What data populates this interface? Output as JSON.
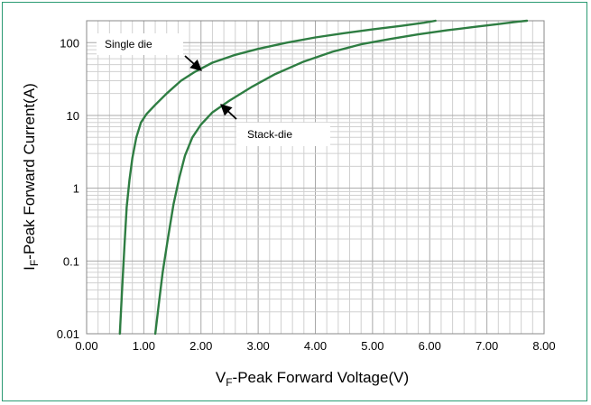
{
  "chart_data": {
    "type": "line",
    "xlabel": {
      "main": "V",
      "sub": "F",
      "rest": "-Peak Forward Voltage(V)"
    },
    "ylabel": {
      "main": "I",
      "sub": "F",
      "rest": "-Peak Forward Current(A)"
    },
    "xlim": [
      0,
      8
    ],
    "ylim": [
      0.01,
      200
    ],
    "y_scale": "log",
    "grid": true,
    "x_ticks": [
      "0.00",
      "1.00",
      "2.00",
      "3.00",
      "4.00",
      "5.00",
      "6.00",
      "7.00",
      "8.00"
    ],
    "y_ticks": [
      {
        "value": 0.01,
        "label": "0.01"
      },
      {
        "value": 0.1,
        "label": "0.1"
      },
      {
        "value": 1,
        "label": "1"
      },
      {
        "value": 10,
        "label": "10"
      },
      {
        "value": 100,
        "label": "100"
      }
    ],
    "series": [
      {
        "name": "Single die",
        "color": "#2e7d42",
        "x": [
          0.58,
          0.62,
          0.66,
          0.7,
          0.75,
          0.8,
          0.87,
          0.95,
          1.05,
          1.2,
          1.4,
          1.65,
          1.9,
          2.2,
          2.6,
          3.0,
          3.5,
          4.0,
          4.5,
          5.0,
          5.5,
          5.9,
          6.1
        ],
        "y": [
          0.01,
          0.04,
          0.15,
          0.55,
          1.3,
          2.6,
          5.0,
          8.0,
          10.5,
          14.0,
          20.0,
          30.0,
          40.0,
          53.0,
          68.0,
          82.0,
          100.0,
          118.0,
          135.0,
          152.0,
          170.0,
          188.0,
          200.0
        ]
      },
      {
        "name": "Stack-die",
        "color": "#2e7d42",
        "x": [
          1.2,
          1.26,
          1.33,
          1.42,
          1.52,
          1.62,
          1.72,
          1.85,
          2.0,
          2.2,
          2.5,
          2.9,
          3.3,
          3.8,
          4.3,
          4.8,
          5.3,
          5.8,
          6.3,
          6.8,
          7.2,
          7.55,
          7.7
        ],
        "y": [
          0.01,
          0.025,
          0.07,
          0.2,
          0.6,
          1.4,
          2.8,
          5.0,
          7.5,
          11.0,
          16.0,
          25.0,
          37.0,
          55.0,
          75.0,
          95.0,
          112.0,
          130.0,
          148.0,
          165.0,
          180.0,
          195.0,
          200.0
        ]
      }
    ],
    "annotations": [
      {
        "text": "Single die",
        "series": 0
      },
      {
        "text": "Stack-die",
        "series": 1
      }
    ]
  }
}
